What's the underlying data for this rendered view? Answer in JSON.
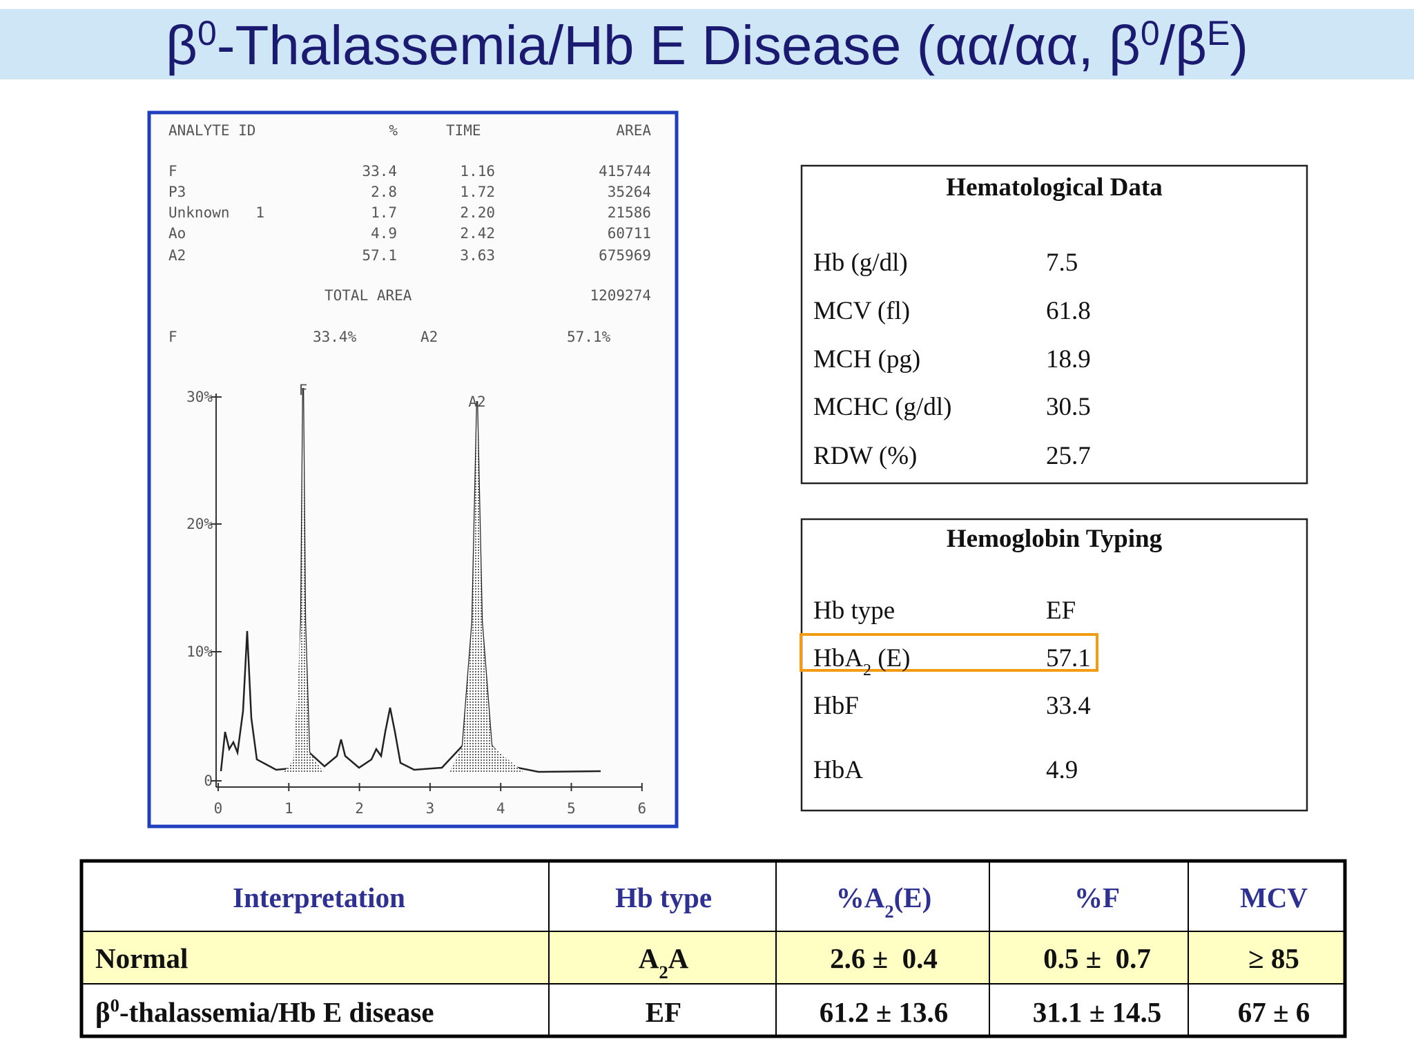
{
  "title": [
    "β",
    "0",
    "-Thalassemia/Hb E Disease (αα/αα, β",
    "0",
    "/β",
    "E",
    ")"
  ],
  "report": {
    "header": [
      "ANALYTE ID",
      "%",
      "TIME",
      "AREA"
    ],
    "rows": [
      [
        "F",
        "33.4",
        "1.16",
        "415744"
      ],
      [
        "P3",
        "2.8",
        "1.72",
        "35264"
      ],
      [
        "Unknown   1",
        "1.7",
        "2.20",
        "21586"
      ],
      [
        "Ao",
        "4.9",
        "2.42",
        "60711"
      ],
      [
        "A2",
        "57.1",
        "3.63",
        "675969"
      ]
    ],
    "total": [
      "TOTAL AREA",
      "1209274"
    ],
    "summary": [
      "F",
      "33.4%",
      "A2",
      "57.1%"
    ],
    "chart": {
      "y_ticks": [
        "30%",
        "20%",
        "10%",
        "0"
      ],
      "x_ticks": [
        "0",
        "1",
        "2",
        "3",
        "4",
        "5",
        "6"
      ],
      "peaks": [
        "F",
        "A2"
      ]
    }
  },
  "hematological": {
    "title": "Hematological Data",
    "rows": [
      [
        "Hb (g/dl)",
        "7.5"
      ],
      [
        "MCV (fl)",
        "61.8"
      ],
      [
        "MCH (pg)",
        "18.9"
      ],
      [
        "MCHC (g/dl)",
        "30.5"
      ],
      [
        "RDW (%)",
        "25.7"
      ]
    ]
  },
  "typing": {
    "title": "Hemoglobin Typing",
    "rows": [
      [
        "Hb type",
        "EF"
      ],
      [
        [
          "HbA",
          "2",
          " (E)"
        ],
        "57.1"
      ],
      [
        "HbF",
        "33.4"
      ],
      [
        "HbA",
        "4.9"
      ]
    ]
  },
  "interpretation_table": {
    "header": [
      "Interpretation",
      "Hb type",
      [
        "%A",
        "2",
        "(E)"
      ],
      "%F",
      "MCV"
    ],
    "rows": [
      [
        [
          "Normal"
        ],
        [
          "A",
          "2",
          "A"
        ],
        "2.6 ±  0.4",
        "0.5 ±  0.7",
        "≥ 85"
      ],
      [
        [
          "β",
          "0",
          "-thalassemia/Hb E disease"
        ],
        [
          "EF"
        ],
        "61.2 ± 13.6",
        "31.1 ± 14.5",
        "67 ± 6"
      ]
    ]
  }
}
